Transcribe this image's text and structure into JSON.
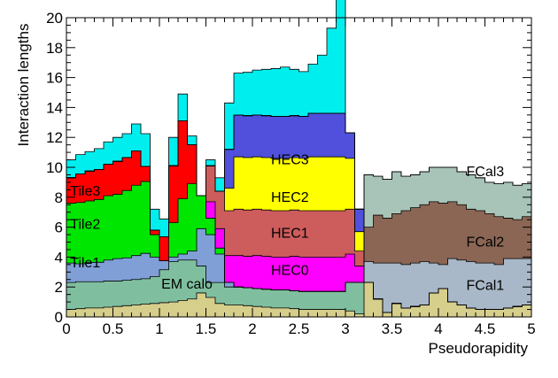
{
  "chart_data": {
    "type": "area",
    "subtype": "stacked-step-histogram",
    "xlabel": "Pseudorapidity",
    "ylabel": "Interaction lengths",
    "xlim": [
      0,
      5
    ],
    "ylim": [
      0,
      20
    ],
    "x_ticks": [
      0,
      0.5,
      1,
      1.5,
      2,
      2.5,
      3,
      3.5,
      4,
      4.5,
      5
    ],
    "x_tick_labels": [
      "0",
      "0.5",
      "1",
      "1.5",
      "2",
      "2.5",
      "3",
      "3.5",
      "4",
      "4.5",
      "5"
    ],
    "y_ticks": [
      0,
      2,
      4,
      6,
      8,
      10,
      12,
      14,
      16,
      18,
      20
    ],
    "y_tick_labels": [
      "0",
      "2",
      "4",
      "6",
      "8",
      "10",
      "12",
      "14",
      "16",
      "18",
      "20"
    ],
    "grid": false,
    "legend": "none (labels placed on regions)",
    "bin_width": 0.1,
    "x": [
      0.05,
      0.15,
      0.25,
      0.35,
      0.45,
      0.55,
      0.65,
      0.75,
      0.85,
      0.95,
      1.05,
      1.15,
      1.25,
      1.35,
      1.45,
      1.55,
      1.65,
      1.75,
      1.85,
      1.95,
      2.05,
      2.15,
      2.25,
      2.35,
      2.45,
      2.55,
      2.65,
      2.75,
      2.85,
      2.95,
      3.05,
      3.15,
      3.25,
      3.35,
      3.45,
      3.55,
      3.65,
      3.75,
      3.85,
      3.95,
      4.05,
      4.15,
      4.25,
      4.35,
      4.45,
      4.55,
      4.65,
      4.75,
      4.85,
      4.95
    ],
    "series": [
      {
        "name": "",
        "color": "#d6ce8b",
        "values": [
          0.5,
          0.55,
          0.6,
          0.6,
          0.65,
          0.7,
          0.75,
          0.8,
          0.85,
          0.9,
          0.95,
          1.0,
          1.1,
          1.2,
          1.6,
          1.3,
          0.9,
          0.8,
          0.8,
          0.75,
          0.7,
          0.65,
          0.6,
          0.6,
          0.55,
          0.5,
          0.5,
          0.5,
          0.5,
          0.5,
          0.4,
          0.2,
          2.3,
          1.2,
          0.3,
          0.9,
          0.6,
          0.7,
          0.8,
          1.6,
          1.9,
          1.0,
          0.8,
          0.6,
          0.5,
          0.5,
          0.5,
          0.6,
          0.7,
          0.8
        ]
      },
      {
        "name": "EM calo",
        "color": "#7fbf9f",
        "values": [
          1.8,
          1.8,
          1.75,
          1.75,
          1.75,
          1.7,
          1.7,
          1.7,
          1.7,
          1.8,
          2.2,
          2.7,
          2.7,
          2.6,
          1.8,
          1.0,
          1.4,
          1.2,
          1.2,
          1.2,
          1.2,
          1.2,
          1.2,
          1.2,
          1.2,
          1.2,
          1.2,
          1.2,
          1.2,
          1.2,
          1.9,
          2.1,
          0,
          0,
          0,
          0,
          0,
          0,
          0,
          0,
          0,
          0,
          0,
          0,
          0,
          0,
          0,
          0,
          0,
          0
        ]
      },
      {
        "name": "Tile1",
        "color": "#7f9fd6",
        "values": [
          1.3,
          1.2,
          1.3,
          1.3,
          1.4,
          1.5,
          1.5,
          1.6,
          1.7,
          1.3,
          0.6,
          0.3,
          0.4,
          0.6,
          2.5,
          3.2,
          1.9,
          0.3,
          0,
          0,
          0,
          0,
          0,
          0,
          0,
          0,
          0,
          0,
          0,
          0,
          0,
          0,
          0,
          0,
          0,
          0,
          0,
          0,
          0,
          0,
          0,
          0,
          0,
          0,
          0,
          0,
          0,
          0,
          0,
          0
        ]
      },
      {
        "name": "Tile2",
        "color": "#00e600",
        "values": [
          4.0,
          4.1,
          4.1,
          4.2,
          4.3,
          4.3,
          4.5,
          4.7,
          4.8,
          1.5,
          0.0,
          2.3,
          3.7,
          4.5,
          2.2,
          1.1,
          0.4,
          0,
          0,
          0,
          0,
          0,
          0,
          0,
          0,
          0,
          0,
          0,
          0,
          0,
          0,
          0,
          0,
          0,
          0,
          0,
          0,
          0,
          0,
          0,
          0,
          0,
          0,
          0,
          0,
          0,
          0,
          0,
          0,
          0
        ]
      },
      {
        "name": "Tile3",
        "color": "#ff0000",
        "values": [
          1.7,
          1.9,
          2.0,
          2.0,
          2.1,
          2.2,
          2.2,
          2.3,
          1.0,
          0.3,
          1.6,
          3.8,
          5.2,
          2.6,
          0.0,
          0,
          0,
          0,
          0,
          0,
          0,
          0,
          0,
          0,
          0,
          0,
          0,
          0,
          0,
          0,
          0,
          0,
          0,
          0,
          0,
          0,
          0,
          0,
          0,
          0,
          0,
          0,
          0,
          0,
          0,
          0,
          0,
          0,
          0,
          0
        ]
      },
      {
        "name": "HEC0",
        "color": "#ff00ff",
        "values": [
          0,
          0,
          0,
          0,
          0,
          0,
          0,
          0,
          0,
          0,
          0,
          0,
          0,
          0,
          0,
          1.1,
          1.3,
          1.8,
          2.1,
          2.1,
          2.2,
          2.2,
          2.2,
          2.2,
          2.3,
          2.3,
          2.3,
          2.3,
          2.3,
          2.3,
          1.9,
          1.1,
          0,
          0,
          0,
          0,
          0,
          0,
          0,
          0,
          0,
          0,
          0,
          0,
          0,
          0,
          0,
          0,
          0,
          0
        ]
      },
      {
        "name": "HEC1",
        "color": "#cd5c5c",
        "values": [
          0,
          0,
          0,
          0,
          0,
          0,
          0,
          0,
          0,
          0,
          0,
          0,
          0,
          0,
          0,
          2.4,
          2.5,
          3.0,
          3.1,
          3.1,
          3.1,
          3.1,
          3.1,
          3.1,
          3.1,
          3.1,
          3.1,
          3.1,
          3.1,
          3.1,
          3.0,
          1.0,
          0,
          0,
          0,
          0,
          0,
          0,
          0,
          0,
          0,
          0,
          0,
          0,
          0,
          0,
          0,
          0,
          0,
          0
        ]
      },
      {
        "name": "HEC2",
        "color": "#ffff00",
        "values": [
          0,
          0,
          0,
          0,
          0,
          0,
          0,
          0,
          0,
          0,
          0,
          0,
          0,
          0,
          0,
          0,
          0,
          1.5,
          3.5,
          3.5,
          3.5,
          3.5,
          3.5,
          3.5,
          3.5,
          3.5,
          3.6,
          3.6,
          3.6,
          3.6,
          3.4,
          1.3,
          0,
          0,
          0,
          0,
          0,
          0,
          0,
          0,
          0,
          0,
          0,
          0,
          0,
          0,
          0,
          0,
          0,
          0
        ]
      },
      {
        "name": "HEC3",
        "color": "#5050dd",
        "values": [
          0,
          0,
          0,
          0,
          0,
          0,
          0,
          0,
          0,
          0,
          0,
          0,
          0,
          0,
          0,
          0,
          0,
          2.6,
          2.8,
          2.8,
          2.8,
          2.8,
          2.8,
          2.8,
          2.8,
          2.8,
          2.9,
          2.9,
          2.9,
          2.9,
          1.7,
          1.5,
          0,
          0,
          0,
          0,
          0,
          0,
          0,
          0,
          0,
          0,
          0,
          0,
          0,
          0,
          0,
          0,
          0,
          0
        ]
      },
      {
        "name": "FCal1",
        "color": "#a8b8c8",
        "values": [
          0,
          0,
          0,
          0,
          0,
          0,
          0,
          0,
          0,
          0,
          0,
          0,
          0,
          0,
          0,
          0,
          0,
          0,
          0,
          0,
          0,
          0,
          0,
          0,
          0,
          0,
          0,
          0,
          0,
          0,
          0,
          0,
          1.4,
          2.4,
          3.3,
          2.7,
          2.9,
          2.9,
          2.9,
          2.0,
          1.6,
          2.9,
          3.0,
          3.1,
          3.1,
          3.1,
          3.0,
          3.3,
          3.2,
          3.1
        ]
      },
      {
        "name": "FCal2",
        "color": "#8b6655",
        "values": [
          0,
          0,
          0,
          0,
          0,
          0,
          0,
          0,
          0,
          0,
          0,
          0,
          0,
          0,
          0,
          0,
          0,
          0,
          0,
          0,
          0,
          0,
          0,
          0,
          0,
          0,
          0,
          0,
          0,
          0,
          0,
          0,
          2.3,
          3.2,
          3.0,
          3.3,
          3.6,
          3.7,
          3.8,
          4.1,
          4.1,
          3.8,
          3.7,
          3.5,
          3.5,
          3.3,
          3.2,
          2.7,
          2.6,
          2.8
        ]
      },
      {
        "name": "FCal3",
        "color": "#a8c4b8",
        "values": [
          0,
          0,
          0,
          0,
          0,
          0,
          0,
          0,
          0,
          0,
          0,
          0,
          0,
          0,
          0,
          0,
          0,
          0,
          0,
          0,
          0,
          0,
          0,
          0,
          0,
          0,
          0,
          0,
          0,
          0,
          0,
          0,
          3.5,
          2.6,
          2.6,
          2.8,
          2.3,
          2.2,
          2.2,
          2.3,
          2.4,
          2.3,
          2.2,
          2.3,
          2.2,
          2.1,
          2.2,
          2.4,
          2.3,
          2.2
        ]
      },
      {
        "name": "",
        "color": "#00eeee",
        "values": [
          1.2,
          1.3,
          1.3,
          1.4,
          1.5,
          1.6,
          1.6,
          1.8,
          2.2,
          1.4,
          1.2,
          1.9,
          1.8,
          0.6,
          0,
          0.4,
          0.9,
          3.1,
          2.8,
          2.9,
          3.0,
          3.1,
          3.2,
          3.3,
          3.1,
          3.0,
          3.3,
          3.9,
          5.7,
          9.0,
          0,
          0,
          0,
          0,
          0,
          0,
          0,
          0,
          0,
          0,
          0,
          0,
          0,
          0,
          0,
          0,
          0,
          0,
          0,
          0
        ]
      }
    ],
    "annotations": [
      {
        "text": "Tile3",
        "x": 0.04,
        "y": 8.1
      },
      {
        "text": "Tile2",
        "x": 0.04,
        "y": 5.9
      },
      {
        "text": "Tile1",
        "x": 0.04,
        "y": 3.3
      },
      {
        "text": "EM calo",
        "x": 1.02,
        "y": 1.9
      },
      {
        "text": "HEC3",
        "x": 2.2,
        "y": 10.2
      },
      {
        "text": "HEC2",
        "x": 2.2,
        "y": 7.7
      },
      {
        "text": "HEC1",
        "x": 2.2,
        "y": 5.3
      },
      {
        "text": "HEC0",
        "x": 2.2,
        "y": 2.8
      },
      {
        "text": "FCal3",
        "x": 4.3,
        "y": 9.4
      },
      {
        "text": "FCal2",
        "x": 4.3,
        "y": 4.7
      },
      {
        "text": "FCal1",
        "x": 4.3,
        "y": 1.8
      }
    ]
  }
}
